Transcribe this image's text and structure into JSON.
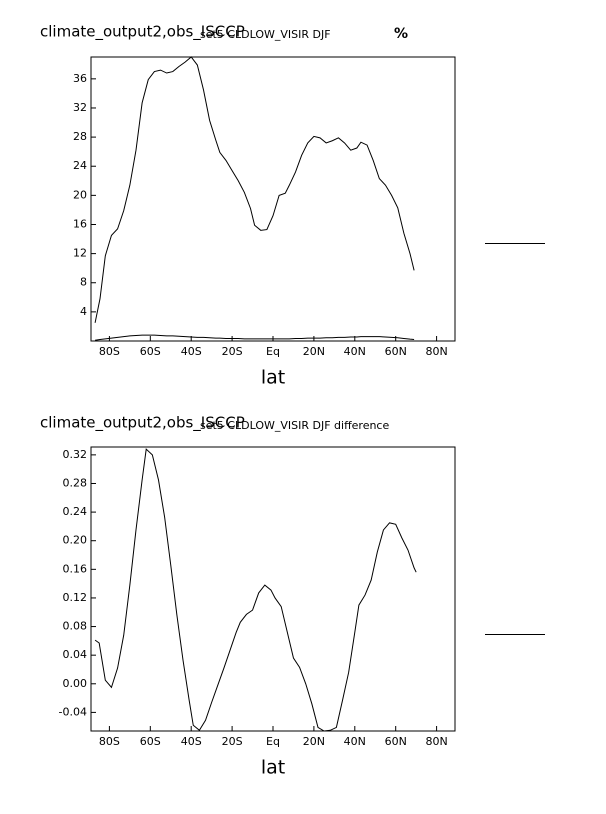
{
  "chart_data": [
    {
      "type": "line",
      "title": "climate_output2,obs_ISCCP",
      "subtitle": "set5 CLDLOW_VISIR DJF",
      "units": "%",
      "x_label": "lat",
      "xlim": [
        -89,
        89
      ],
      "xticks": [
        {
          "value": -80,
          "label": "80S"
        },
        {
          "value": -60,
          "label": "60S"
        },
        {
          "value": -40,
          "label": "40S"
        },
        {
          "value": -20,
          "label": "20S"
        },
        {
          "value": 0,
          "label": "Eq"
        },
        {
          "value": 20,
          "label": "20N"
        },
        {
          "value": 40,
          "label": "40N"
        },
        {
          "value": 60,
          "label": "60N"
        },
        {
          "value": 80,
          "label": "80N"
        }
      ],
      "ylim": [
        0,
        39
      ],
      "yticks": [
        4,
        8,
        12,
        16,
        20,
        24,
        28,
        32,
        36
      ],
      "x": [
        -87,
        -84.6,
        -82,
        -79,
        -76,
        -73,
        -70,
        -67,
        -64,
        -61,
        -58,
        -55,
        -52,
        -49,
        -46,
        -43,
        -40,
        -37,
        -34,
        -31,
        -28,
        -26,
        -23,
        -20,
        -17,
        -14,
        -11,
        -9,
        -6,
        -3,
        0,
        3,
        6,
        8,
        11,
        14,
        17,
        20,
        23,
        26,
        29,
        32,
        35,
        38,
        41,
        43,
        46,
        49,
        52,
        55,
        58,
        61,
        64,
        67,
        69
      ],
      "series": [
        {
          "color": "#000000",
          "values": [
            2.5,
            5.8,
            11.7,
            14.5,
            15.4,
            17.9,
            21.4,
            26.2,
            32.7,
            35.9,
            37,
            37.2,
            36.8,
            37,
            37.7,
            38.3,
            39,
            37.9,
            34.5,
            30.3,
            27.6,
            25.9,
            24.8,
            23.4,
            22,
            20.4,
            18.2,
            15.9,
            15.2,
            15.3,
            17.2,
            20,
            20.3,
            21.4,
            23.2,
            25.5,
            27.2,
            28.1,
            27.9,
            27.2,
            27.5,
            27.9,
            27.2,
            26.2,
            26.5,
            27.3,
            26.9,
            24.8,
            22.3,
            21.4,
            20,
            18.3,
            14.8,
            12,
            9.7
          ]
        },
        {
          "color": "#000000",
          "values": [
            0.1,
            0.2,
            0.3,
            0.4,
            0.5,
            0.6,
            0.7,
            0.75,
            0.8,
            0.8,
            0.8,
            0.75,
            0.7,
            0.7,
            0.65,
            0.6,
            0.55,
            0.5,
            0.5,
            0.45,
            0.4,
            0.4,
            0.35,
            0.35,
            0.35,
            0.3,
            0.3,
            0.3,
            0.3,
            0.3,
            0.3,
            0.3,
            0.3,
            0.3,
            0.35,
            0.35,
            0.4,
            0.4,
            0.4,
            0.45,
            0.45,
            0.5,
            0.5,
            0.55,
            0.55,
            0.6,
            0.6,
            0.6,
            0.6,
            0.55,
            0.5,
            0.45,
            0.35,
            0.25,
            0.2
          ]
        }
      ]
    },
    {
      "type": "line",
      "title": "climate_output2,obs_ISCCP",
      "subtitle": "set5 CLDLOW_VISIR DJF difference",
      "x_label": "lat",
      "xlim": [
        -89,
        89
      ],
      "xticks": [
        {
          "value": -80,
          "label": "80S"
        },
        {
          "value": -60,
          "label": "60S"
        },
        {
          "value": -40,
          "label": "40S"
        },
        {
          "value": -20,
          "label": "20S"
        },
        {
          "value": 0,
          "label": "Eq"
        },
        {
          "value": 20,
          "label": "20N"
        },
        {
          "value": 40,
          "label": "40N"
        },
        {
          "value": 60,
          "label": "60N"
        },
        {
          "value": 80,
          "label": "80N"
        }
      ],
      "ylim": [
        -0.066,
        0.331
      ],
      "yticks": [
        -0.04,
        {
          "value": 0,
          "label": "0.00"
        },
        0.04,
        0.08,
        0.12,
        0.16,
        {
          "value": 0.2,
          "label": "0.20"
        },
        0.24,
        0.28,
        0.32
      ],
      "x": [
        -87,
        -85,
        -82,
        -79,
        -76,
        -73,
        -70,
        -67,
        -64,
        -62,
        -59,
        -56,
        -53,
        -50,
        -47,
        -44,
        -41,
        -39,
        -36,
        -33,
        -30,
        -27,
        -24,
        -21,
        -18,
        -16,
        -13,
        -10,
        -7,
        -4,
        -1,
        1,
        4,
        7,
        10,
        13,
        16,
        19,
        22,
        25,
        28,
        31,
        34,
        37,
        40,
        42,
        45,
        48,
        51,
        54,
        57,
        60,
        63,
        66,
        69,
        70
      ],
      "series": [
        {
          "color": "#000000",
          "values": [
            0.061,
            0.057,
            0.005,
            -0.005,
            0.022,
            0.068,
            0.138,
            0.215,
            0.285,
            0.328,
            0.32,
            0.285,
            0.233,
            0.166,
            0.096,
            0.033,
            -0.023,
            -0.058,
            -0.065,
            -0.051,
            -0.026,
            -0.002,
            0.022,
            0.047,
            0.072,
            0.086,
            0.097,
            0.103,
            0.127,
            0.138,
            0.131,
            0.12,
            0.108,
            0.072,
            0.036,
            0.023,
            0,
            -0.028,
            -0.061,
            -0.066,
            -0.065,
            -0.061,
            -0.023,
            0.016,
            0.072,
            0.11,
            0.124,
            0.145,
            0.184,
            0.215,
            0.225,
            0.223,
            0.204,
            0.187,
            0.162,
            0.156
          ]
        }
      ]
    }
  ]
}
